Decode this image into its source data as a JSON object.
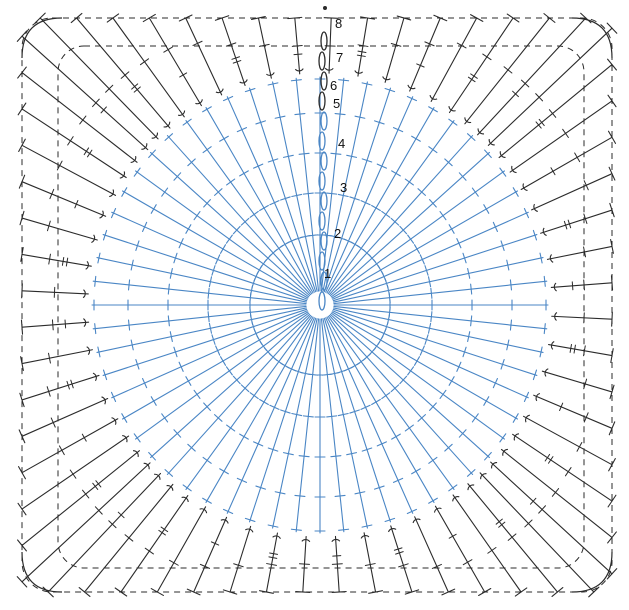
{
  "diagram": {
    "colors": {
      "background": "#ffffff",
      "inner_rounds": "#4a86c5",
      "outer_rounds": "#2b2b2b"
    },
    "round_labels": [
      "1",
      "2",
      "3",
      "4",
      "5",
      "6",
      "7",
      "8"
    ],
    "inner_round_count": 5,
    "outer_round_count": 3,
    "stitch_symbols": [
      "chain-oval",
      "double-crochet-t",
      "treble-crochet-slash",
      "front-post-arc"
    ]
  }
}
